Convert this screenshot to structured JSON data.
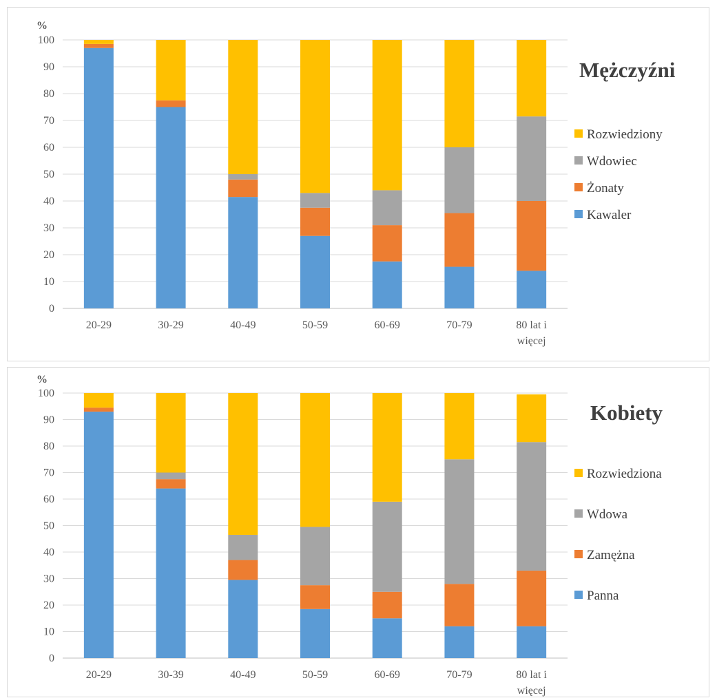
{
  "chart_data": [
    {
      "type": "bar",
      "stacked": true,
      "title": "Mężczyźni",
      "unit_label": "%",
      "ylim": [
        0,
        100
      ],
      "yticks": [
        0,
        10,
        20,
        30,
        40,
        50,
        60,
        70,
        80,
        90,
        100
      ],
      "grid": true,
      "legend_position": "right",
      "categories": [
        [
          "20-29"
        ],
        [
          "30-29"
        ],
        [
          "40-49"
        ],
        [
          "50-59"
        ],
        [
          "60-69"
        ],
        [
          "70-79"
        ],
        [
          "80 lat i",
          "więcej"
        ]
      ],
      "series": [
        {
          "name": "Kawaler",
          "color": "#5b9bd5",
          "values": [
            97,
            75,
            41.5,
            27,
            17.5,
            15.5,
            14
          ]
        },
        {
          "name": "Żonaty",
          "color": "#ed7d31",
          "values": [
            1.5,
            2.5,
            6.5,
            10.5,
            13.5,
            20,
            26
          ]
        },
        {
          "name": "Wdowiec",
          "color": "#a5a5a5",
          "values": [
            0,
            0,
            2,
            5.5,
            13,
            24.5,
            31.5
          ]
        },
        {
          "name": "Rozwiedziony",
          "color": "#ffc000",
          "values": [
            1.5,
            22.5,
            50,
            57,
            56,
            40,
            28.5
          ]
        }
      ]
    },
    {
      "type": "bar",
      "stacked": true,
      "title": "Kobiety",
      "unit_label": "%",
      "ylim": [
        0,
        100
      ],
      "yticks": [
        0,
        10,
        20,
        30,
        40,
        50,
        60,
        70,
        80,
        90,
        100
      ],
      "grid": true,
      "legend_position": "right",
      "categories": [
        [
          "20-29"
        ],
        [
          "30-39"
        ],
        [
          "40-49"
        ],
        [
          "50-59"
        ],
        [
          "60-69"
        ],
        [
          "70-79"
        ],
        [
          "80 lat i",
          "więcej"
        ]
      ],
      "series": [
        {
          "name": "Panna",
          "color": "#5b9bd5",
          "values": [
            93,
            64,
            29.5,
            18.5,
            15,
            12,
            12
          ]
        },
        {
          "name": "Zamężna",
          "color": "#ed7d31",
          "values": [
            1.5,
            3.5,
            7.5,
            9,
            10,
            16,
            21
          ]
        },
        {
          "name": "Wdowa",
          "color": "#a5a5a5",
          "values": [
            0,
            2.5,
            9.5,
            22,
            34,
            47,
            48.5
          ]
        },
        {
          "name": "Rozwiedziona",
          "color": "#ffc000",
          "values": [
            5.5,
            30,
            53.5,
            50.5,
            41,
            25,
            18
          ]
        }
      ]
    }
  ]
}
